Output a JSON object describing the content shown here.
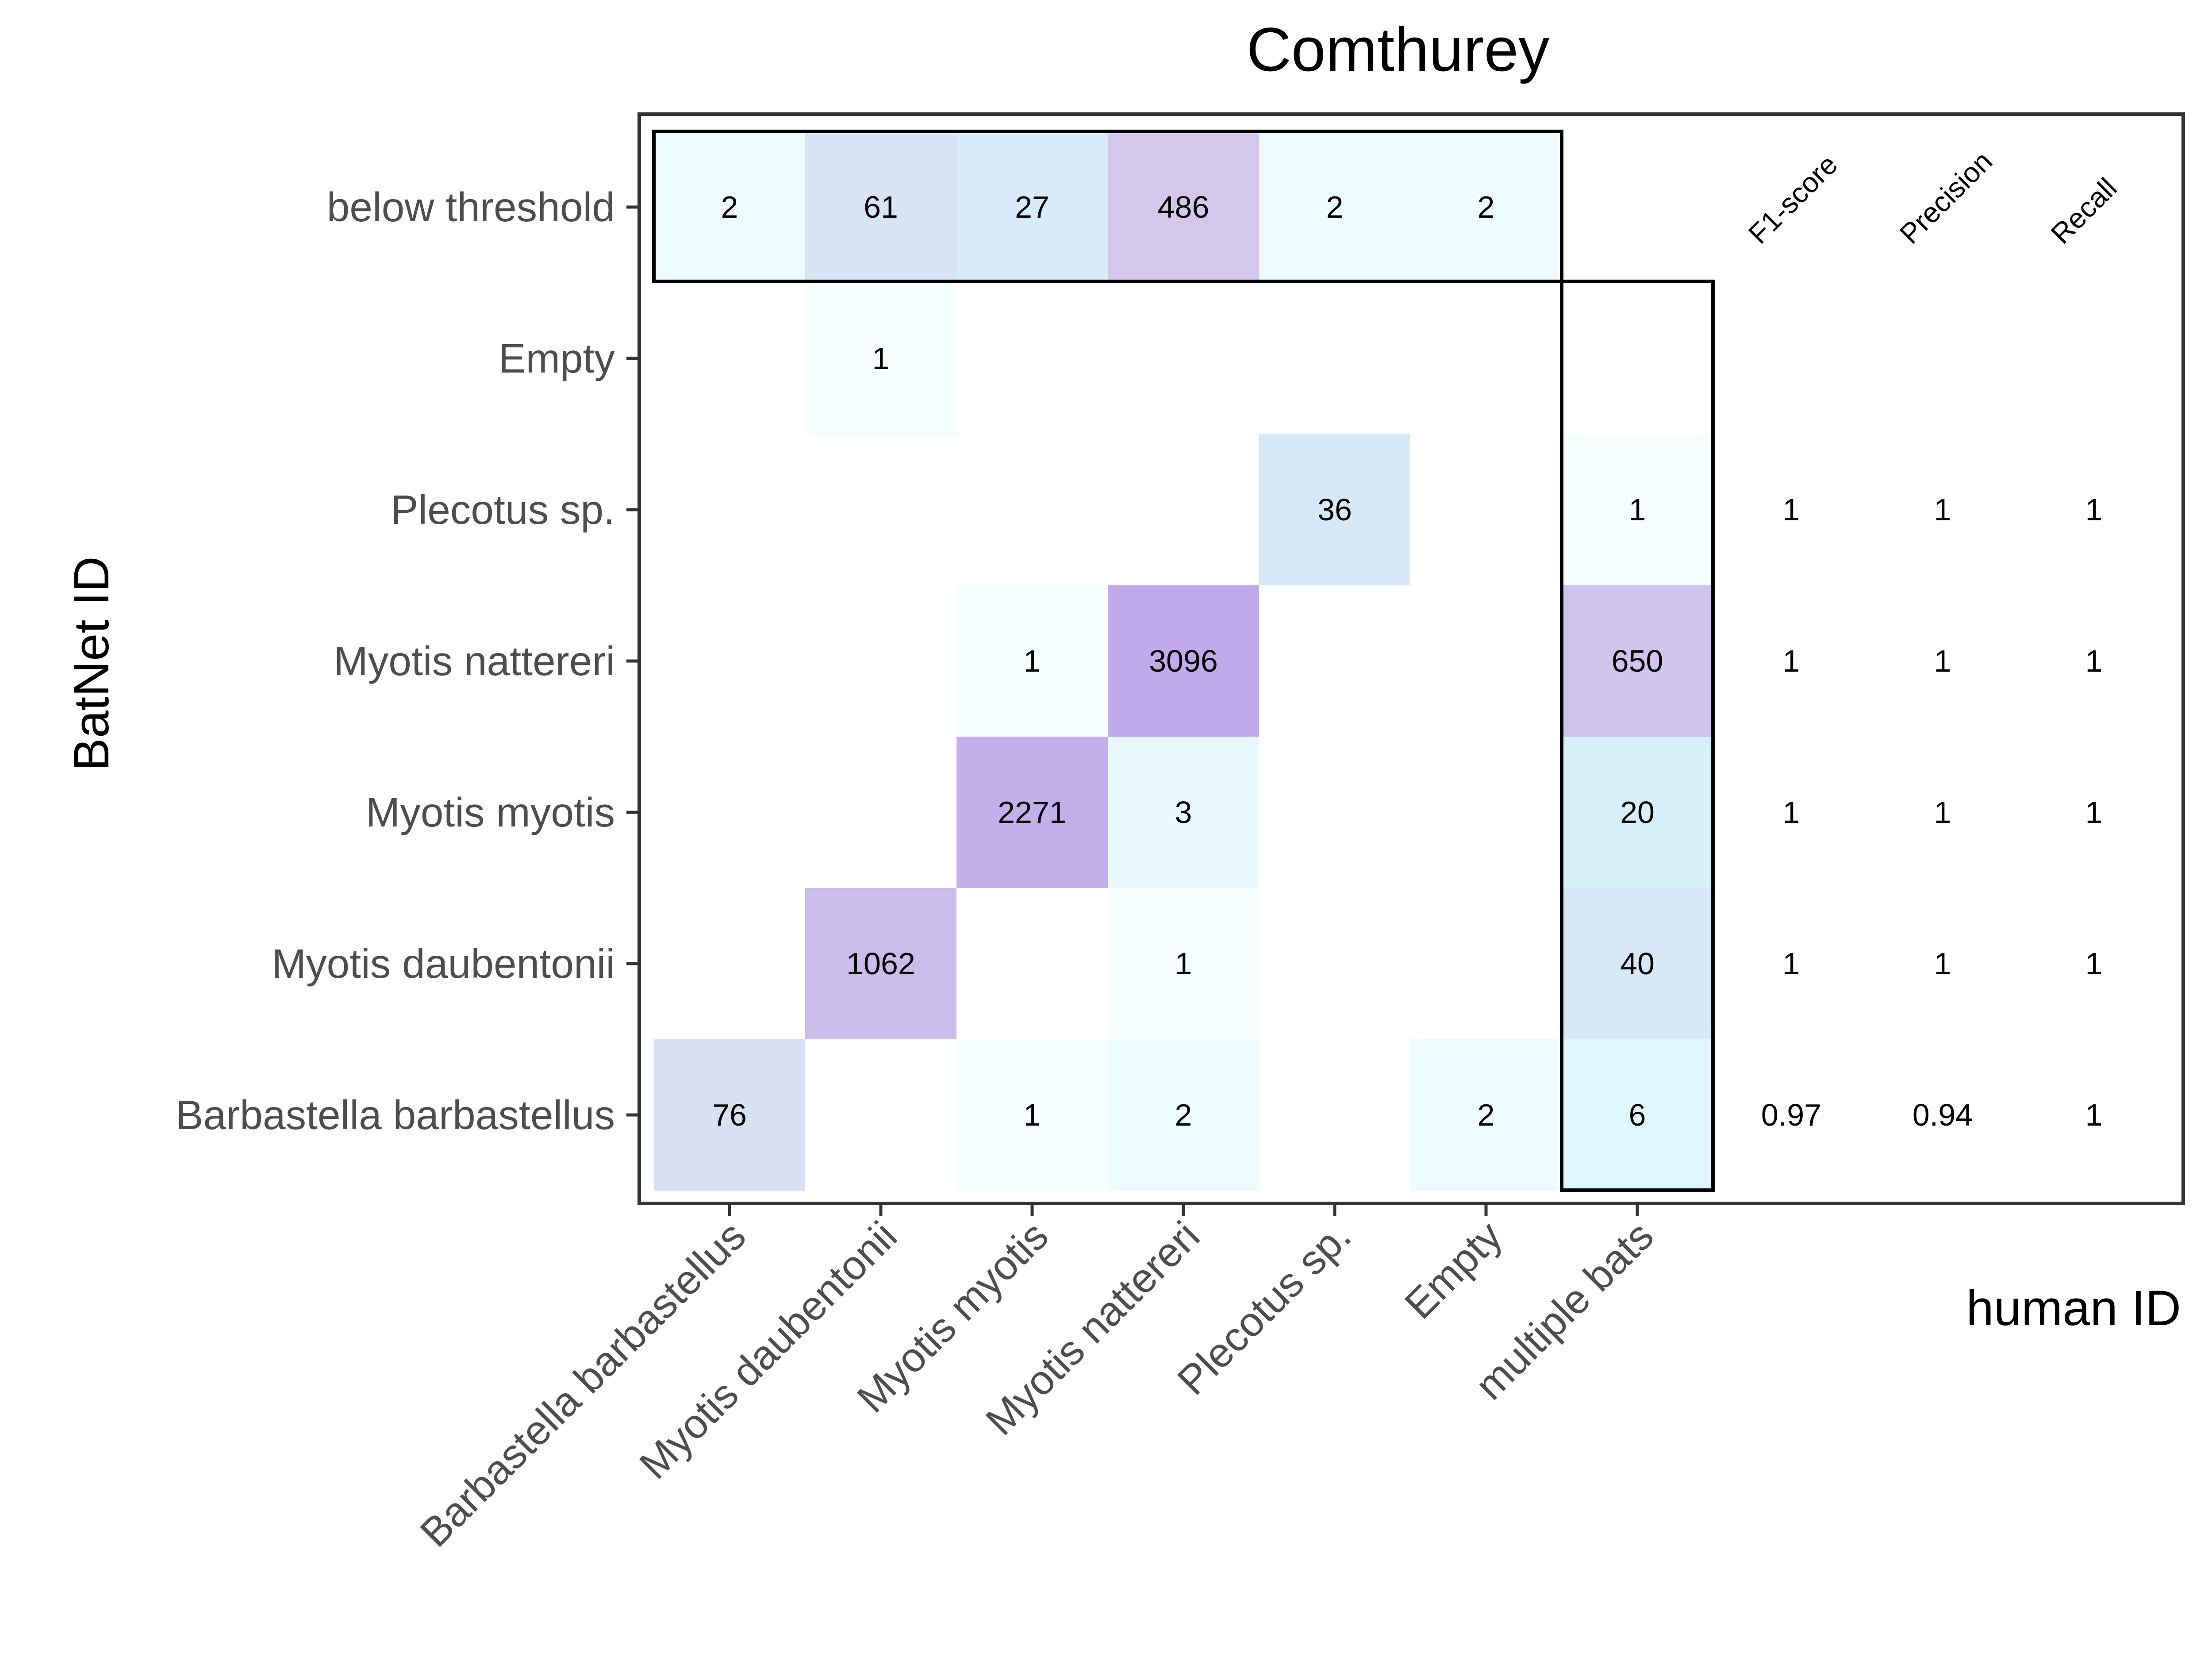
{
  "chart_data": {
    "type": "heatmap",
    "title": "Comthurey",
    "xlabel": "human ID",
    "ylabel": "BatNet ID",
    "x_categories": [
      "Barbastella barbastellus",
      "Myotis daubentonii",
      "Myotis myotis",
      "Myotis nattereri",
      "Plecotus sp.",
      "Empty",
      "multiple bats"
    ],
    "y_categories": [
      "below threshold",
      "Empty",
      "Plecotus sp.",
      "Myotis nattereri",
      "Myotis myotis",
      "Myotis daubentonii",
      "Barbastella barbastellus"
    ],
    "cells": [
      {
        "x": "Barbastella barbastellus",
        "y": "below threshold",
        "value": 2
      },
      {
        "x": "Myotis daubentonii",
        "y": "below threshold",
        "value": 61
      },
      {
        "x": "Myotis myotis",
        "y": "below threshold",
        "value": 27
      },
      {
        "x": "Myotis nattereri",
        "y": "below threshold",
        "value": 486
      },
      {
        "x": "Plecotus sp.",
        "y": "below threshold",
        "value": 2
      },
      {
        "x": "Empty",
        "y": "below threshold",
        "value": 2
      },
      {
        "x": "Myotis daubentonii",
        "y": "Empty",
        "value": 1
      },
      {
        "x": "Plecotus sp.",
        "y": "Plecotus sp.",
        "value": 36
      },
      {
        "x": "multiple bats",
        "y": "Plecotus sp.",
        "value": 1
      },
      {
        "x": "Myotis myotis",
        "y": "Myotis nattereri",
        "value": 1
      },
      {
        "x": "Myotis nattereri",
        "y": "Myotis nattereri",
        "value": 3096
      },
      {
        "x": "multiple bats",
        "y": "Myotis nattereri",
        "value": 650
      },
      {
        "x": "Myotis myotis",
        "y": "Myotis myotis",
        "value": 2271
      },
      {
        "x": "Myotis nattereri",
        "y": "Myotis myotis",
        "value": 3
      },
      {
        "x": "multiple bats",
        "y": "Myotis myotis",
        "value": 20
      },
      {
        "x": "Myotis daubentonii",
        "y": "Myotis daubentonii",
        "value": 1062
      },
      {
        "x": "Myotis nattereri",
        "y": "Myotis daubentonii",
        "value": 1
      },
      {
        "x": "multiple bats",
        "y": "Myotis daubentonii",
        "value": 40
      },
      {
        "x": "Barbastella barbastellus",
        "y": "Barbastella barbastellus",
        "value": 76
      },
      {
        "x": "Myotis myotis",
        "y": "Barbastella barbastellus",
        "value": 1
      },
      {
        "x": "Myotis nattereri",
        "y": "Barbastella barbastellus",
        "value": 2
      },
      {
        "x": "Empty",
        "y": "Barbastella barbastellus",
        "value": 2
      },
      {
        "x": "multiple bats",
        "y": "Barbastella barbastellus",
        "value": 6
      }
    ],
    "metric_headers": [
      "F1-score",
      "Precision",
      "Recall"
    ],
    "metrics": [
      {
        "y": "Plecotus sp.",
        "values": [
          "1",
          "1",
          "1"
        ]
      },
      {
        "y": "Myotis nattereri",
        "values": [
          "1",
          "1",
          "1"
        ]
      },
      {
        "y": "Myotis myotis",
        "values": [
          "1",
          "1",
          "1"
        ]
      },
      {
        "y": "Myotis daubentonii",
        "values": [
          "1",
          "1",
          "1"
        ]
      },
      {
        "y": "Barbastella barbastellus",
        "values": [
          "0.97",
          "0.94",
          "1"
        ]
      }
    ],
    "color_scale": {
      "low": "#f5fdff",
      "mid": "#d6f3fc",
      "mid_high": "#d9d6ec",
      "high": "#c0aaea"
    },
    "grid": false,
    "legend": "none"
  }
}
